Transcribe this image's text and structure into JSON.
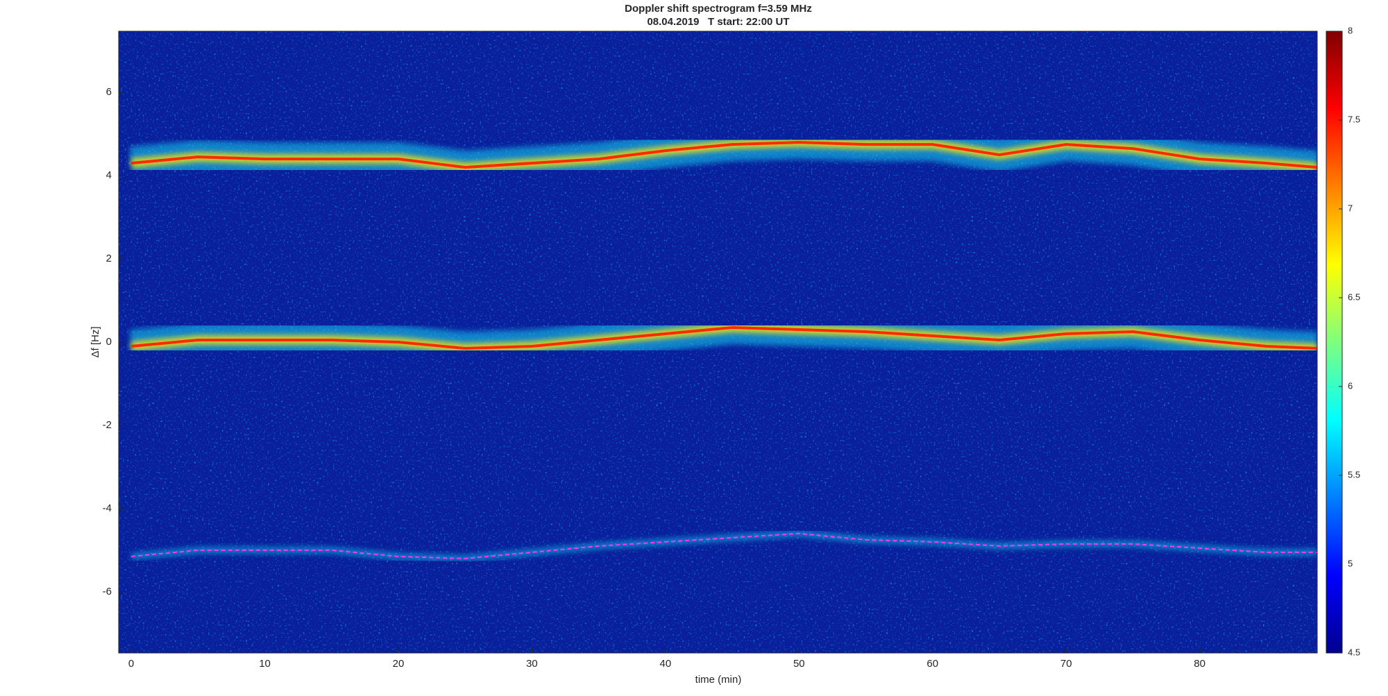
{
  "chart_data": {
    "type": "spectrogram",
    "title": "Doppler shift spectrogram f=3.59 MHz",
    "subtitle": "08.04.2019   T start: 22:00 UT",
    "x_label": "time (min)",
    "y_label": "Δf [Hz]",
    "xlim": [
      -0.94,
      88.8
    ],
    "xticks": [
      0,
      10,
      20,
      30,
      40,
      50,
      60,
      70,
      80
    ],
    "ylim": [
      -7.47,
      7.47
    ],
    "yticks": [
      -6,
      -4,
      -2,
      0,
      2,
      4,
      6
    ],
    "colorbar_lim": [
      4.5,
      8
    ],
    "colorbar_ticks": [
      4.5,
      5,
      5.5,
      6,
      6.5,
      7,
      7.5,
      8
    ],
    "x": [
      0,
      5,
      10,
      15,
      20,
      25,
      30,
      35,
      40,
      45,
      50,
      55,
      60,
      65,
      70,
      75,
      80,
      85,
      88.8
    ],
    "series": [
      {
        "color": "#ff2a00",
        "line_style": "solid",
        "values": [
          4.3,
          4.45,
          4.4,
          4.4,
          4.4,
          4.2,
          4.3,
          4.4,
          4.6,
          4.75,
          4.8,
          4.75,
          4.75,
          4.5,
          4.75,
          4.65,
          4.4,
          4.3,
          4.2
        ]
      },
      {
        "color": "#ff2a00",
        "line_style": "solid",
        "values": [
          -0.1,
          0.05,
          0.05,
          0.05,
          0,
          -0.15,
          -0.1,
          0.05,
          0.2,
          0.35,
          0.3,
          0.25,
          0.15,
          0.05,
          0.2,
          0.25,
          0.05,
          -0.1,
          -0.15
        ]
      },
      {
        "color": "#ff33ff",
        "line_style": "dashed",
        "values": [
          -5.15,
          -5.0,
          -5.0,
          -5.0,
          -5.15,
          -5.2,
          -5.05,
          -4.9,
          -4.8,
          -4.7,
          -4.6,
          -4.75,
          -4.8,
          -4.9,
          -4.85,
          -4.85,
          -4.95,
          -5.05,
          -5.05
        ]
      }
    ]
  }
}
